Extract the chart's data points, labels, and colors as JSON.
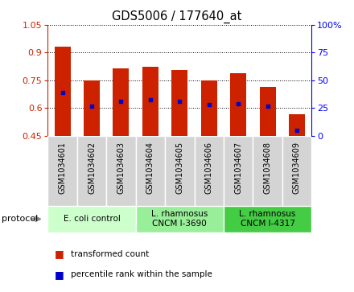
{
  "title": "GDS5006 / 177640_at",
  "samples": [
    "GSM1034601",
    "GSM1034602",
    "GSM1034603",
    "GSM1034604",
    "GSM1034605",
    "GSM1034606",
    "GSM1034607",
    "GSM1034608",
    "GSM1034609"
  ],
  "transformed_count": [
    0.93,
    0.75,
    0.815,
    0.825,
    0.805,
    0.75,
    0.79,
    0.715,
    0.565
  ],
  "percentile_rank": [
    0.685,
    0.61,
    0.635,
    0.645,
    0.635,
    0.62,
    0.625,
    0.61,
    0.48
  ],
  "bar_bottom": 0.45,
  "ylim_left": [
    0.45,
    1.05
  ],
  "ylim_right": [
    0,
    100
  ],
  "yticks_left": [
    0.45,
    0.6,
    0.75,
    0.9,
    1.05
  ],
  "ytick_labels_left": [
    "0.45",
    "0.6",
    "0.75",
    "0.9",
    "1.05"
  ],
  "yticks_right": [
    0,
    25,
    50,
    75,
    100
  ],
  "ytick_labels_right": [
    "0",
    "25",
    "50",
    "75",
    "100%"
  ],
  "bar_color": "#cc2200",
  "dot_color": "#0000cc",
  "grid_color": "#000000",
  "proto_colors": [
    "#ccffcc",
    "#99ee99",
    "#44cc44"
  ],
  "proto_labels": [
    "E. coli control",
    "L. rhamnosus\nCNCM I-3690",
    "L. rhamnosus\nCNCM I-4317"
  ],
  "proto_starts": [
    0,
    3,
    6
  ],
  "proto_ends": [
    3,
    6,
    9
  ],
  "legend_labels": [
    "transformed count",
    "percentile rank within the sample"
  ],
  "legend_colors": [
    "#cc2200",
    "#0000cc"
  ],
  "bar_width": 0.55,
  "figsize": [
    4.4,
    3.63
  ],
  "dpi": 100
}
